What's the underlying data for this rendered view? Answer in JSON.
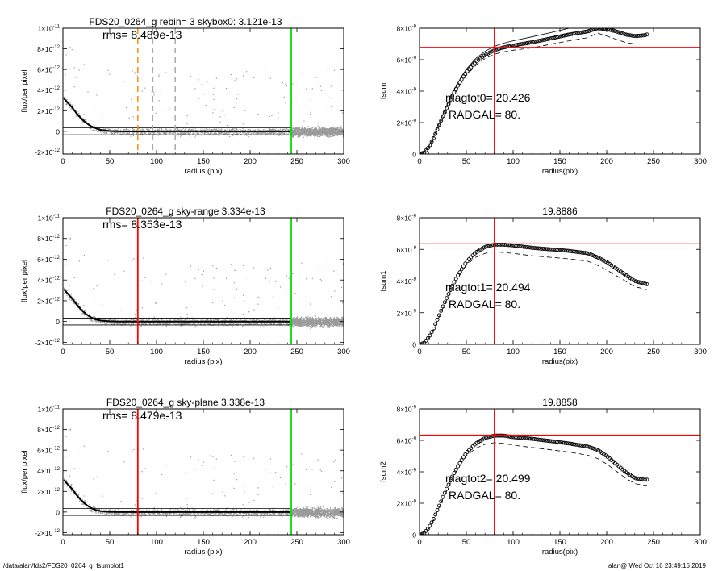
{
  "footer": {
    "path": "/data/alan/fds2/FDS20_0264_g_fsumplot1",
    "stamp": "alan@  Wed Oct 16 23:49:15 2019"
  },
  "colors": {
    "axis": "#000000",
    "scatter": "#9a9a9a",
    "profile": "#000000",
    "sky_box_line": "#ff8c00",
    "radgal_line": "#ff0000",
    "outer_radius_line": "#00dd00",
    "dashed_gray": "#aaaaaa"
  },
  "chart_data": [
    {
      "id": "p1",
      "type": "scatter",
      "title": "FDS20_0264_g rebin= 3    skybox0:  3.121e-13",
      "annotation": "rms= 8.489e-13",
      "xlabel": "radius (pix)",
      "ylabel": "flux/per pixel",
      "xlim": [
        0,
        300
      ],
      "ylim": [
        -2.2e-12,
        1e-11
      ],
      "xticks": [
        0,
        50,
        100,
        150,
        200,
        250,
        300
      ],
      "xticklabels": [
        "0",
        "50",
        "100",
        "150",
        "200",
        "250",
        "300"
      ],
      "yticks": [
        -2e-12,
        0,
        2e-12,
        4e-12,
        6e-12,
        8e-12,
        1e-11
      ],
      "yticklabels": [
        {
          "m": "-2×10",
          "e": "-12"
        },
        {
          "m": "0",
          "e": ""
        },
        {
          "m": "2×10",
          "e": "-12"
        },
        {
          "m": "4×10",
          "e": "-12"
        },
        {
          "m": "6×10",
          "e": "-12"
        },
        {
          "m": "8×10",
          "e": "-12"
        },
        {
          "m": "1×10",
          "e": "-11"
        }
      ],
      "sky_band": [
        -3.3e-13,
        3.3e-13
      ],
      "profile": {
        "x": [
          1,
          5,
          10,
          15,
          20,
          25,
          30,
          35,
          40,
          45,
          50,
          60,
          80,
          100,
          150,
          200,
          243
        ],
        "y": [
          3.2e-12,
          2.8e-12,
          2.3e-12,
          1.7e-12,
          1.2e-12,
          8e-13,
          5e-13,
          3e-13,
          1.5e-13,
          8e-14,
          3e-14,
          0,
          -2e-14,
          0,
          0,
          0,
          0
        ]
      },
      "vlines": [
        {
          "x": 80,
          "color": "#ff8c00",
          "dash": true
        },
        {
          "x": 96,
          "color": "#aaaaaa",
          "dash": true
        },
        {
          "x": 120,
          "color": "#aaaaaa",
          "dash": true
        },
        {
          "x": 244,
          "color": "#00dd00",
          "dash": false
        }
      ]
    },
    {
      "id": "p2",
      "type": "scatter",
      "title": "FDS20_0264_g sky-range  3.334e-13",
      "annotation": "rms= 8.353e-13",
      "xlabel": "radius (pix)",
      "ylabel": "flux/per pixel",
      "xlim": [
        0,
        300
      ],
      "ylim": [
        -2.2e-12,
        1e-11
      ],
      "xticks": [
        0,
        50,
        100,
        150,
        200,
        250,
        300
      ],
      "xticklabels": [
        "0",
        "50",
        "100",
        "150",
        "200",
        "250",
        "300"
      ],
      "yticks": [
        -2e-12,
        0,
        2e-12,
        4e-12,
        6e-12,
        8e-12,
        1e-11
      ],
      "yticklabels": [
        {
          "m": "-2×10",
          "e": "-12"
        },
        {
          "m": "0",
          "e": ""
        },
        {
          "m": "2×10",
          "e": "-12"
        },
        {
          "m": "4×10",
          "e": "-12"
        },
        {
          "m": "6×10",
          "e": "-12"
        },
        {
          "m": "8×10",
          "e": "-12"
        },
        {
          "m": "1×10",
          "e": "-11"
        }
      ],
      "sky_band": [
        -3.3e-13,
        3.3e-13
      ],
      "profile": {
        "x": [
          1,
          5,
          10,
          15,
          20,
          25,
          30,
          35,
          40,
          45,
          50,
          60,
          80,
          100,
          150,
          200,
          243
        ],
        "y": [
          3.1e-12,
          2.7e-12,
          2.2e-12,
          1.6e-12,
          1.1e-12,
          7e-13,
          4e-13,
          2e-13,
          1e-13,
          5e-14,
          2e-14,
          0,
          0,
          0,
          0,
          0,
          0
        ]
      },
      "vlines": [
        {
          "x": 80,
          "color": "#ff0000",
          "dash": false
        },
        {
          "x": 244,
          "color": "#00dd00",
          "dash": false
        }
      ]
    },
    {
      "id": "p3",
      "type": "scatter",
      "title": "FDS20_0264_g sky-plane  3.338e-13",
      "annotation": "rms= 8.479e-13",
      "xlabel": "radius (pix)",
      "ylabel": "flux/per pixel",
      "xlim": [
        0,
        300
      ],
      "ylim": [
        -2.2e-12,
        1e-11
      ],
      "xticks": [
        0,
        50,
        100,
        150,
        200,
        250,
        300
      ],
      "xticklabels": [
        "0",
        "50",
        "100",
        "150",
        "200",
        "250",
        "300"
      ],
      "yticks": [
        -2e-12,
        0,
        2e-12,
        4e-12,
        6e-12,
        8e-12,
        1e-11
      ],
      "yticklabels": [
        {
          "m": "-2×10",
          "e": "-12"
        },
        {
          "m": "0",
          "e": ""
        },
        {
          "m": "2×10",
          "e": "-12"
        },
        {
          "m": "4×10",
          "e": "-12"
        },
        {
          "m": "6×10",
          "e": "-12"
        },
        {
          "m": "8×10",
          "e": "-12"
        },
        {
          "m": "1×10",
          "e": "-11"
        }
      ],
      "sky_band": [
        -3.3e-13,
        3.3e-13
      ],
      "profile": {
        "x": [
          1,
          5,
          10,
          15,
          20,
          25,
          30,
          35,
          40,
          45,
          50,
          60,
          80,
          100,
          150,
          200,
          243
        ],
        "y": [
          3.1e-12,
          2.7e-12,
          2.2e-12,
          1.6e-12,
          1.1e-12,
          7e-13,
          4e-13,
          2e-13,
          1e-13,
          5e-14,
          2e-14,
          0,
          0,
          0,
          0,
          0,
          0
        ]
      },
      "vlines": [
        {
          "x": 80,
          "color": "#ff0000",
          "dash": false
        },
        {
          "x": 244,
          "color": "#00dd00",
          "dash": false
        }
      ]
    },
    {
      "id": "c1",
      "type": "line",
      "title": "",
      "annotation": [
        "magtot0=  20.426",
        "RADGAL=     80."
      ],
      "xlabel": "radius(pix)",
      "ylabel": "fsum",
      "xlim": [
        0,
        300
      ],
      "ylim": [
        0,
        8e-09
      ],
      "xticks": [
        0,
        50,
        100,
        150,
        200,
        250,
        300
      ],
      "xticklabels": [
        "0",
        "50",
        "100",
        "150",
        "200",
        "250",
        "300"
      ],
      "yticks": [
        0,
        2e-09,
        4e-09,
        6e-09,
        8e-09
      ],
      "yticklabels": [
        {
          "m": "0",
          "e": ""
        },
        {
          "m": "2×10",
          "e": "-9"
        },
        {
          "m": "4×10",
          "e": "-9"
        },
        {
          "m": "6×10",
          "e": "-9"
        },
        {
          "m": "8×10",
          "e": "-9"
        }
      ],
      "curve": {
        "x": [
          1,
          5,
          10,
          15,
          20,
          25,
          30,
          35,
          40,
          45,
          50,
          60,
          70,
          80,
          90,
          100,
          120,
          140,
          160,
          180,
          190,
          200,
          210,
          220,
          230,
          240,
          243
        ],
        "y": [
          0,
          1e-10,
          4.5e-10,
          1e-09,
          1.7e-09,
          2.4e-09,
          3.05e-09,
          3.7e-09,
          4.25e-09,
          4.75e-09,
          5.2e-09,
          5.85e-09,
          6.3e-09,
          6.6e-09,
          6.78e-09,
          6.9e-09,
          7.1e-09,
          7.35e-09,
          7.6e-09,
          7.8e-09,
          8e-09,
          7.95e-09,
          7.8e-09,
          7.6e-09,
          7.5e-09,
          7.55e-09,
          7.6e-09
        ]
      },
      "envelope": {
        "upper": [
          0,
          1.2e-10,
          5e-10,
          1.08e-09,
          1.8e-09,
          2.52e-09,
          3.2e-09,
          3.86e-09,
          4.42e-09,
          4.94e-09,
          5.4e-09,
          6.07e-09,
          6.53e-09,
          6.85e-09,
          7.05e-09,
          7.2e-09,
          7.45e-09,
          7.72e-09,
          8e-09,
          8.2e-09,
          8.3e-09,
          8.4e-09,
          8.3e-09,
          8.1e-09,
          8e-09,
          8.1e-09,
          8.2e-09
        ],
        "lower": [
          0,
          8e-11,
          4e-10,
          9.2e-10,
          1.6e-09,
          2.28e-09,
          2.9e-09,
          3.54e-09,
          4.08e-09,
          4.56e-09,
          5e-09,
          5.63e-09,
          6.07e-09,
          6.35e-09,
          6.5e-09,
          6.6e-09,
          6.75e-09,
          6.98e-09,
          7.2e-09,
          7.4e-09,
          7.7e-09,
          7.5e-09,
          7.3e-09,
          7.1e-09,
          7e-09,
          7e-09,
          7e-09
        ]
      },
      "hline": 6.78e-09,
      "vline": 80
    },
    {
      "id": "c2",
      "type": "line",
      "title": "19.8886",
      "annotation": [
        "magtot1=  20.494",
        "RADGAL=     80."
      ],
      "xlabel": "radius(pix)",
      "ylabel": "fsum1",
      "xlim": [
        0,
        300
      ],
      "ylim": [
        0,
        8e-09
      ],
      "xticks": [
        0,
        50,
        100,
        150,
        200,
        250,
        300
      ],
      "xticklabels": [
        "0",
        "50",
        "100",
        "150",
        "200",
        "250",
        "300"
      ],
      "yticks": [
        0,
        2e-09,
        4e-09,
        6e-09,
        8e-09
      ],
      "yticklabels": [
        {
          "m": "0",
          "e": ""
        },
        {
          "m": "2×10",
          "e": "-9"
        },
        {
          "m": "4×10",
          "e": "-9"
        },
        {
          "m": "6×10",
          "e": "-9"
        },
        {
          "m": "8×10",
          "e": "-9"
        }
      ],
      "curve": {
        "x": [
          1,
          5,
          10,
          15,
          20,
          25,
          30,
          35,
          40,
          45,
          50,
          60,
          70,
          80,
          90,
          100,
          120,
          140,
          160,
          180,
          190,
          200,
          210,
          220,
          230,
          240,
          243
        ],
        "y": [
          0,
          1e-10,
          4.5e-10,
          1e-09,
          1.7e-09,
          2.4e-09,
          3.05e-09,
          3.7e-09,
          4.25e-09,
          4.75e-09,
          5.2e-09,
          5.8e-09,
          6.15e-09,
          6.3e-09,
          6.3e-09,
          6.25e-09,
          6.1e-09,
          6e-09,
          5.9e-09,
          5.75e-09,
          5.5e-09,
          5.2e-09,
          4.8e-09,
          4.4e-09,
          4e-09,
          3.85e-09,
          3.8e-09
        ]
      },
      "envelope": {
        "upper": [],
        "lower": [
          0,
          8e-11,
          4e-10,
          9.2e-10,
          1.6e-09,
          2.28e-09,
          2.9e-09,
          3.54e-09,
          4.08e-09,
          4.56e-09,
          5e-09,
          5.5e-09,
          5.75e-09,
          5.85e-09,
          5.8e-09,
          5.75e-09,
          5.6e-09,
          5.5e-09,
          5.4e-09,
          5.25e-09,
          5e-09,
          4.7e-09,
          4.35e-09,
          4e-09,
          3.65e-09,
          3.5e-09,
          3.45e-09
        ]
      },
      "hline": 6.35e-09,
      "vline": 80
    },
    {
      "id": "c3",
      "type": "line",
      "title": "19.8858",
      "annotation": [
        "magtot2=  20.499",
        "RADGAL=     80."
      ],
      "xlabel": "radius(pix)",
      "ylabel": "fsum2",
      "xlim": [
        0,
        300
      ],
      "ylim": [
        0,
        8e-09
      ],
      "xticks": [
        0,
        50,
        100,
        150,
        200,
        250,
        300
      ],
      "xticklabels": [
        "0",
        "50",
        "100",
        "150",
        "200",
        "250",
        "300"
      ],
      "yticks": [
        0,
        2e-09,
        4e-09,
        6e-09,
        8e-09
      ],
      "yticklabels": [
        {
          "m": "0",
          "e": ""
        },
        {
          "m": "2×10",
          "e": "-9"
        },
        {
          "m": "4×10",
          "e": "-9"
        },
        {
          "m": "6×10",
          "e": "-9"
        },
        {
          "m": "8×10",
          "e": "-9"
        }
      ],
      "curve": {
        "x": [
          1,
          5,
          10,
          15,
          20,
          25,
          30,
          35,
          40,
          45,
          50,
          60,
          70,
          80,
          90,
          100,
          120,
          140,
          160,
          180,
          190,
          200,
          210,
          220,
          230,
          240,
          243
        ],
        "y": [
          0,
          1e-10,
          4.5e-10,
          1e-09,
          1.7e-09,
          2.4e-09,
          3.05e-09,
          3.7e-09,
          4.25e-09,
          4.75e-09,
          5.2e-09,
          5.8e-09,
          6.15e-09,
          6.3e-09,
          6.3e-09,
          6.2e-09,
          6.1e-09,
          5.95e-09,
          5.8e-09,
          5.6e-09,
          5.4e-09,
          5e-09,
          4.5e-09,
          4e-09,
          3.6e-09,
          3.5e-09,
          3.5e-09
        ]
      },
      "envelope": {
        "upper": [],
        "lower": [
          0,
          8e-11,
          4e-10,
          9.2e-10,
          1.6e-09,
          2.28e-09,
          2.9e-09,
          3.54e-09,
          4.08e-09,
          4.56e-09,
          5e-09,
          5.5e-09,
          5.75e-09,
          5.85e-09,
          5.8e-09,
          5.7e-09,
          5.55e-09,
          5.4e-09,
          5.25e-09,
          5.05e-09,
          4.85e-09,
          4.5e-09,
          4.05e-09,
          3.6e-09,
          3.25e-09,
          3.15e-09,
          3.15e-09
        ]
      },
      "hline": 6.33e-09,
      "vline": 80
    }
  ]
}
